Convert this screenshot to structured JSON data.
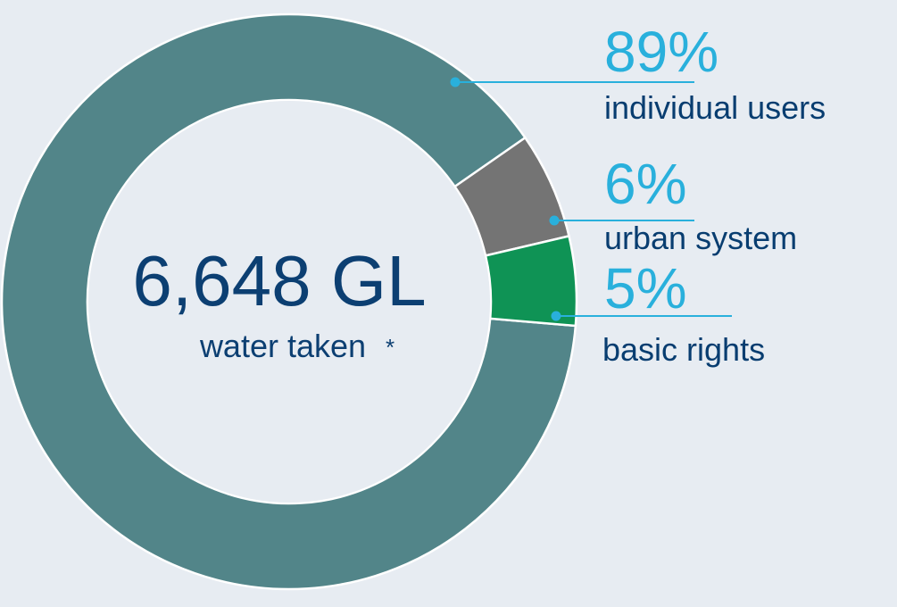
{
  "chart_data": {
    "type": "pie",
    "categories": [
      "individual users",
      "urban system",
      "basic rights"
    ],
    "values": [
      89,
      6,
      5
    ],
    "value_labels": [
      "89%",
      "6%",
      "5%"
    ],
    "colors": [
      "#528589",
      "#747474",
      "#0f9355"
    ],
    "total": {
      "value": "6,648 GL",
      "label": "water taken",
      "footnote_mark": "*"
    }
  },
  "colors": {
    "background": "#e7ecf2",
    "ring_inner": "#e7ecf2",
    "callout": "#29b0dc",
    "center_text": "#0c3f72",
    "label_text": "#083d70"
  }
}
